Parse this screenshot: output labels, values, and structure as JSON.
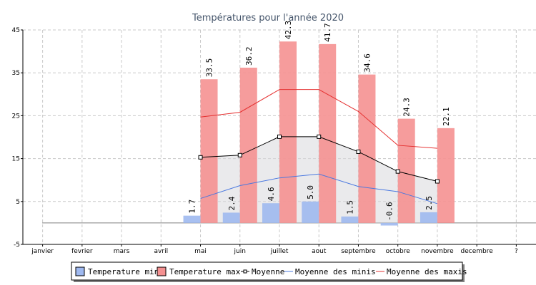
{
  "chart_data": {
    "type": "bar",
    "title": "Températures pour l'année 2020",
    "categories": [
      "janvier",
      "fevrier",
      "mars",
      "avril",
      "mai",
      "juin",
      "juillet",
      "aout",
      "septembre",
      "octobre",
      "novembre",
      "decembre",
      "?"
    ],
    "ylim": [
      -5,
      45
    ],
    "yticks": [
      -5,
      5,
      15,
      25,
      35,
      45
    ],
    "grid": true,
    "baseline": 0,
    "legend_position": "bottom",
    "series": [
      {
        "name": "Temperature min",
        "kind": "bar",
        "color": "#9fb9f0",
        "values": [
          null,
          null,
          null,
          null,
          1.7,
          2.4,
          4.6,
          5.0,
          1.5,
          -0.6,
          2.5,
          null,
          null
        ],
        "labels": [
          "",
          "",
          "",
          "",
          "1.7",
          "2.4",
          "4.6",
          "5.0",
          "1.5",
          "-0.6",
          "2.5",
          "",
          ""
        ]
      },
      {
        "name": "Temperature max",
        "kind": "bar",
        "color": "#f59191",
        "values": [
          null,
          null,
          null,
          null,
          33.5,
          36.2,
          42.3,
          41.7,
          34.6,
          24.3,
          22.1,
          null,
          null
        ],
        "labels": [
          "",
          "",
          "",
          "",
          "33.5",
          "36.2",
          "42.3",
          "41.7",
          "34.6",
          "24.3",
          "22.1",
          "",
          ""
        ]
      },
      {
        "name": "Moyenne",
        "kind": "line-markers",
        "color": "#000000",
        "values": [
          null,
          null,
          null,
          null,
          15.3,
          15.8,
          20.1,
          20.1,
          16.6,
          12.0,
          9.7,
          null,
          null
        ]
      },
      {
        "name": "Moyenne des minis",
        "kind": "line",
        "color": "#4a78e0",
        "values": [
          null,
          null,
          null,
          null,
          5.7,
          8.7,
          10.5,
          11.4,
          8.5,
          7.3,
          4.5,
          null,
          null
        ]
      },
      {
        "name": "Moyenne des maxis",
        "kind": "line",
        "color": "#e53030",
        "values": [
          null,
          null,
          null,
          null,
          24.7,
          25.8,
          31.1,
          31.1,
          26.0,
          18.1,
          17.4,
          null,
          null
        ]
      }
    ]
  }
}
